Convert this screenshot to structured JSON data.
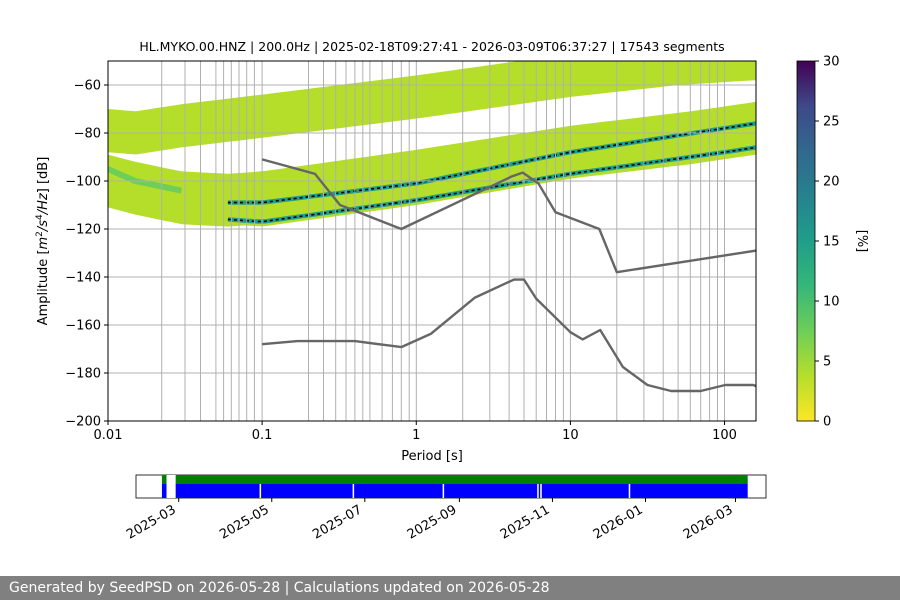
{
  "chart_data": [
    {
      "type": "heatmap",
      "title": "HL.MYKO.00.HNZ | 200.0Hz | 2025-02-18T09:27:41 - 2026-03-09T06:37:27 | 17543 segments",
      "xlabel": "Period [s]",
      "ylabel": "Amplitude [m2/s4/Hz] [dB]",
      "x_scale": "log",
      "xlim": [
        0.01,
        160
      ],
      "ylim": [
        -200,
        -50
      ],
      "x_ticks": [
        {
          "value": 0.01,
          "label": "0.01"
        },
        {
          "value": 0.1,
          "label": "0.1"
        },
        {
          "value": 1,
          "label": "1"
        },
        {
          "value": 10,
          "label": "10"
        },
        {
          "value": 100,
          "label": "100"
        }
      ],
      "y_ticks": [
        -60,
        -80,
        -100,
        -120,
        -140,
        -160,
        -180,
        -200
      ],
      "grid_x_periods": [
        0.0223,
        0.0316,
        0.0398,
        0.0501,
        0.0562,
        0.0631,
        0.0708,
        0.0794,
        0.0891,
        0.1,
        0.2,
        0.25,
        0.3,
        0.35,
        0.4,
        0.45,
        0.5,
        0.6,
        0.7,
        0.8,
        0.9,
        1,
        2,
        3,
        4,
        5,
        6,
        7,
        8,
        9,
        10,
        20,
        30,
        40,
        50,
        60,
        70,
        80,
        90,
        100
      ],
      "grid_y": [
        -60,
        -80,
        -100,
        -120,
        -140,
        -160,
        -180
      ],
      "colorbar": {
        "label": "[%]",
        "min": 0,
        "max": 30,
        "ticks": [
          0,
          5,
          10,
          15,
          20,
          25,
          30
        ]
      },
      "density_bands": [
        {
          "points": [
            [
              0.01,
              -79
            ],
            [
              0.015,
              -80
            ],
            [
              0.03,
              -77
            ],
            [
              0.1,
              -73
            ],
            [
              1,
              -65
            ],
            [
              10,
              -56
            ],
            [
              50,
              -51
            ],
            [
              160,
              -49
            ]
          ],
          "halfwidth": 9,
          "peak_percent": 4
        },
        {
          "points": [
            [
              0.01,
              -100
            ],
            [
              0.015,
              -103
            ],
            [
              0.03,
              -107
            ],
            [
              0.06,
              -108
            ],
            [
              0.1,
              -107
            ],
            [
              1,
              -98
            ],
            [
              10,
              -88
            ],
            [
              60,
              -82
            ],
            [
              160,
              -78
            ]
          ],
          "halfwidth": 11,
          "peak_percent": 3
        },
        {
          "points": [
            [
              0.06,
              -109
            ],
            [
              0.1,
              -109
            ],
            [
              1,
              -101
            ],
            [
              10,
              -88
            ],
            [
              100,
              -78
            ],
            [
              160,
              -76
            ]
          ],
          "halfwidth": 2,
          "peak_percent": 14
        },
        {
          "points": [
            [
              0.06,
              -116
            ],
            [
              0.1,
              -117
            ],
            [
              1,
              -108
            ],
            [
              10,
              -97
            ],
            [
              100,
              -88
            ],
            [
              160,
              -86
            ]
          ],
          "halfwidth": 2,
          "peak_percent": 14
        },
        {
          "points": [
            [
              0.01,
              -95
            ],
            [
              0.015,
              -100
            ],
            [
              0.03,
              -104
            ]
          ],
          "halfwidth": 4,
          "peak_percent": 9
        }
      ],
      "noise_models": [
        {
          "name": "high-noise-model",
          "points": [
            [
              0.1,
              -91
            ],
            [
              0.22,
              -97
            ],
            [
              0.32,
              -110
            ],
            [
              0.8,
              -120
            ],
            [
              4.2,
              -98
            ],
            [
              4.9,
              -96.5
            ],
            [
              6.2,
              -101
            ],
            [
              8,
              -113
            ],
            [
              15.4,
              -120
            ],
            [
              20,
              -138
            ],
            [
              160,
              -129
            ]
          ]
        },
        {
          "name": "low-noise-model",
          "points": [
            [
              0.1,
              -168
            ],
            [
              0.17,
              -166.7
            ],
            [
              0.4,
              -166.7
            ],
            [
              0.8,
              -169.2
            ],
            [
              1.24,
              -163.7
            ],
            [
              2.4,
              -148.6
            ],
            [
              4.3,
              -141.1
            ],
            [
              5,
              -141.1
            ],
            [
              6,
              -149
            ],
            [
              10,
              -163
            ],
            [
              12,
              -166
            ],
            [
              15.6,
              -162.1
            ],
            [
              21.9,
              -177.5
            ],
            [
              31.6,
              -185
            ],
            [
              45,
              -187.5
            ],
            [
              70,
              -187.5
            ],
            [
              101,
              -185
            ],
            [
              154,
              -185
            ],
            [
              160,
              -185.5
            ]
          ]
        }
      ]
    },
    {
      "type": "timeline",
      "x_ticks": [
        "2025-03",
        "2025-05",
        "2025-07",
        "2025-09",
        "2025-11",
        "2026-01",
        "2026-03"
      ],
      "xlim": [
        "2025-02-01",
        "2026-03-21"
      ],
      "coverage_top": {
        "color": "#008000",
        "start": "2025-02-18",
        "end": "2026-03-09"
      },
      "coverage_bottom": {
        "color": "#0000ff",
        "start": "2025-02-18",
        "end": "2026-03-09"
      },
      "gaps": [
        {
          "start": "2025-02-21",
          "end": "2025-02-27"
        },
        {
          "start": "2025-04-23",
          "end": "2025-04-24"
        },
        {
          "start": "2025-06-23",
          "end": "2025-06-24"
        },
        {
          "start": "2025-08-21",
          "end": "2025-08-22"
        },
        {
          "start": "2025-10-22",
          "end": "2025-10-23"
        },
        {
          "start": "2025-10-24",
          "end": "2025-10-25"
        },
        {
          "start": "2025-12-21",
          "end": "2025-12-22"
        }
      ]
    }
  ],
  "footer": {
    "text": "Generated by SeedPSD on 2026-05-28 | Calculations updated on 2026-05-28"
  },
  "colors": {
    "noise_model": "#666666",
    "grid": "#b0b0b0",
    "band_core": "#000000"
  }
}
